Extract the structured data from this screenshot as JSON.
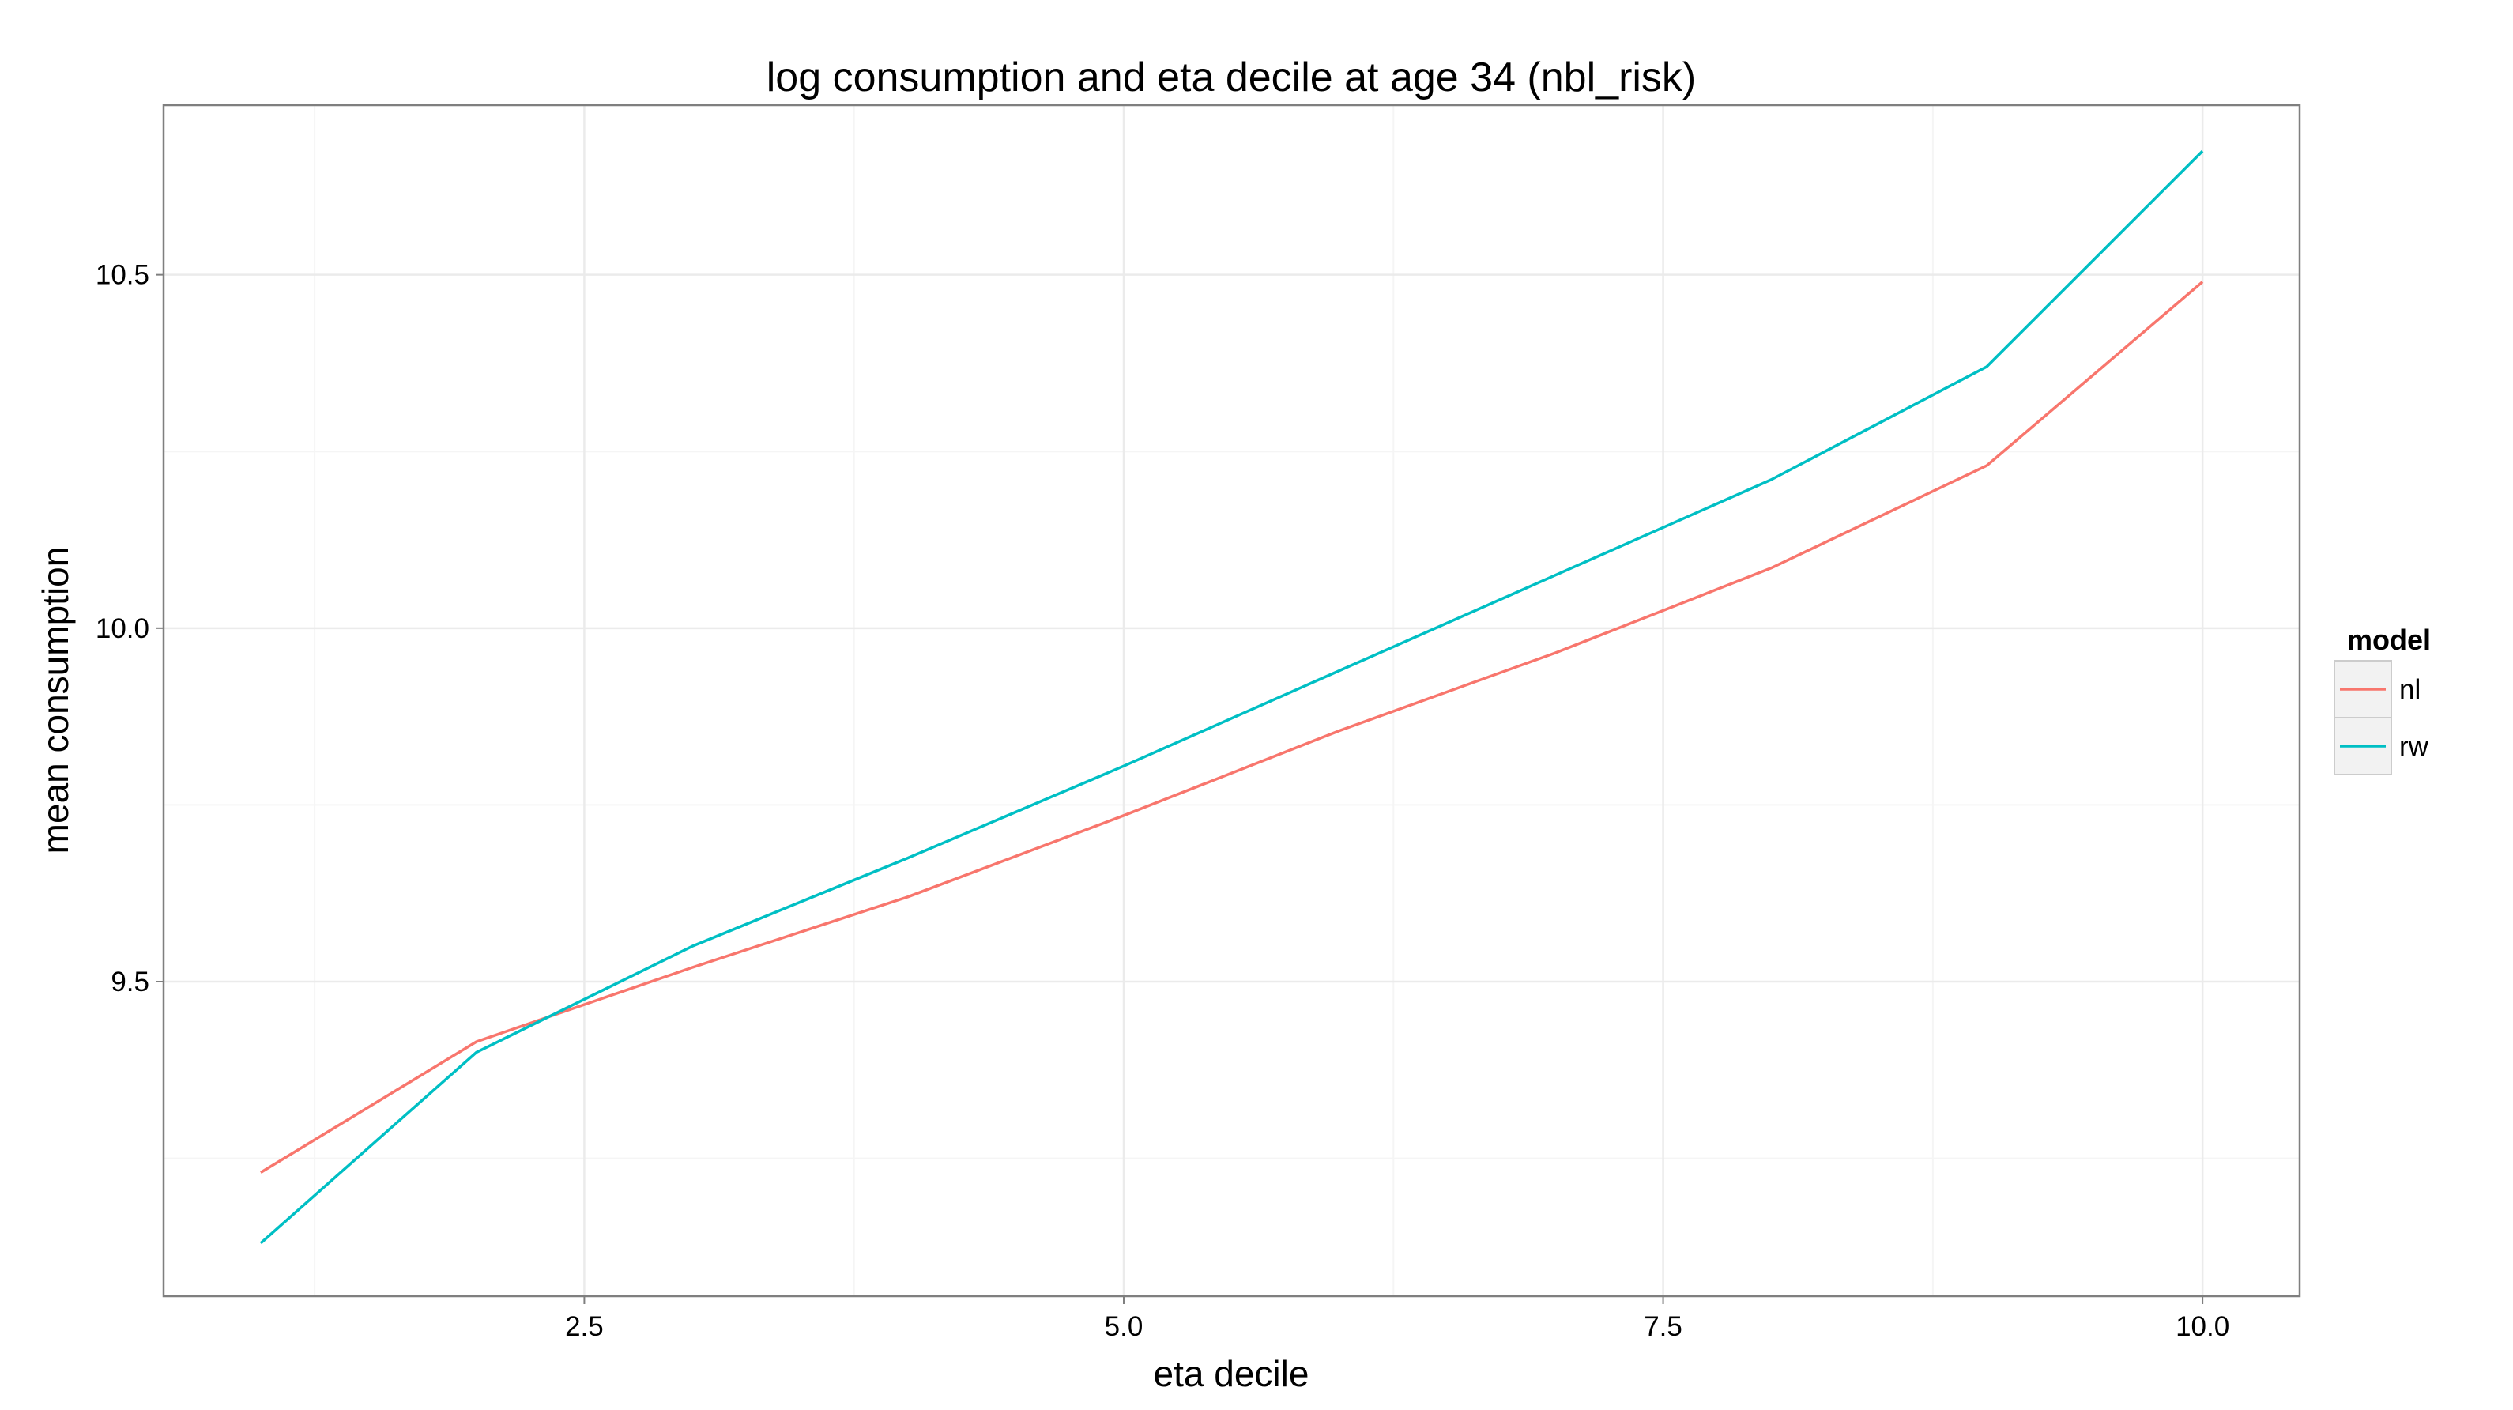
{
  "chart_data": {
    "type": "line",
    "title": "log consumption and eta decile at age 34 (nbl_risk)",
    "xlabel": "eta decile",
    "ylabel": "mean consumption",
    "xlim": [
      0.55,
      10.45
    ],
    "ylim": [
      9.055,
      10.74
    ],
    "x_ticks": [
      2.5,
      5.0,
      7.5,
      10.0
    ],
    "x_tick_labels": [
      "2.5",
      "5.0",
      "7.5",
      "10.0"
    ],
    "y_ticks": [
      9.5,
      10.0,
      10.5
    ],
    "y_tick_labels": [
      "9.5",
      "10.0",
      "10.5"
    ],
    "grid": true,
    "legend": {
      "title": "model",
      "placement": "right"
    },
    "x": [
      1,
      2,
      3,
      4,
      5,
      6,
      7,
      8,
      9,
      10
    ],
    "series": [
      {
        "name": "nl",
        "color": "#F8766D",
        "values": [
          9.23,
          9.415,
          9.52,
          9.62,
          9.735,
          9.855,
          9.965,
          10.085,
          10.23,
          10.49
        ]
      },
      {
        "name": "rw",
        "color": "#00BFC4",
        "values": [
          9.13,
          9.4,
          9.55,
          9.675,
          9.805,
          9.94,
          10.075,
          10.21,
          10.37,
          10.675
        ]
      }
    ]
  }
}
